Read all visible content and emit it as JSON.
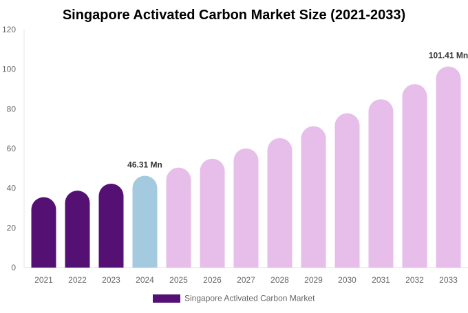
{
  "chart_data": {
    "type": "bar",
    "title": "Singapore Activated Carbon Market Size (2021-2033)",
    "xlabel": "",
    "ylabel": "",
    "ylim": [
      0,
      120
    ],
    "yticks": [
      0,
      20,
      40,
      60,
      80,
      100,
      120
    ],
    "grid": false,
    "legend_position": "bottom",
    "categories": [
      "2021",
      "2022",
      "2023",
      "2024",
      "2025",
      "2026",
      "2027",
      "2028",
      "2029",
      "2030",
      "2031",
      "2032",
      "2033"
    ],
    "series": [
      {
        "name": "Singapore Activated Carbon Market",
        "values": [
          35.5,
          38.8,
          42.3,
          46.31,
          50.4,
          54.9,
          60.1,
          65.3,
          71.3,
          77.8,
          84.9,
          92.5,
          101.41
        ]
      }
    ],
    "bar_colors": [
      "#541173",
      "#541173",
      "#541173",
      "#a4cadf",
      "#e7bde9",
      "#e7bde9",
      "#e7bde9",
      "#e7bde9",
      "#e7bde9",
      "#e7bde9",
      "#e7bde9",
      "#e7bde9",
      "#e7bde9"
    ],
    "legend_color": "#541173",
    "data_labels": [
      {
        "category": "2024",
        "text": "46.31 Mn"
      },
      {
        "category": "2033",
        "text": "101.41 Mn"
      }
    ]
  }
}
